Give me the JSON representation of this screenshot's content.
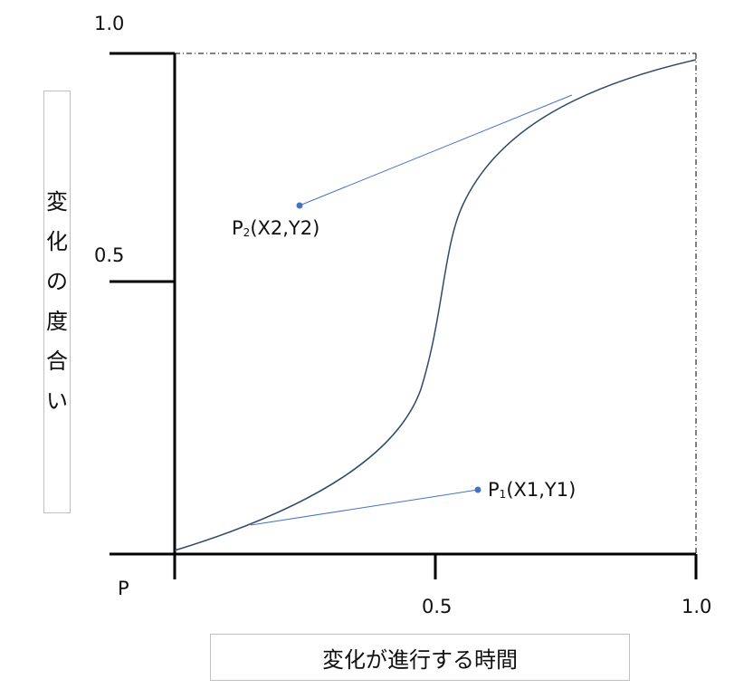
{
  "axes": {
    "y_ticks": [
      "1.0",
      "0.5"
    ],
    "x_ticks": [
      "0.5",
      "1.0"
    ],
    "origin_label": "P",
    "y_label_chars": [
      "変",
      "化",
      "の",
      "度",
      "合",
      "い"
    ],
    "x_label": "変化が進行する時間"
  },
  "points": {
    "p1": {
      "letter": "P",
      "sub": "1",
      "coords": "(X1,Y1)"
    },
    "p2": {
      "letter": "P",
      "sub": "2",
      "coords": "(X2,Y2)"
    }
  },
  "colors": {
    "curve": "#2e4a6b",
    "handle": "#4472c4",
    "point": "#4472c4",
    "axis": "#000000"
  }
}
